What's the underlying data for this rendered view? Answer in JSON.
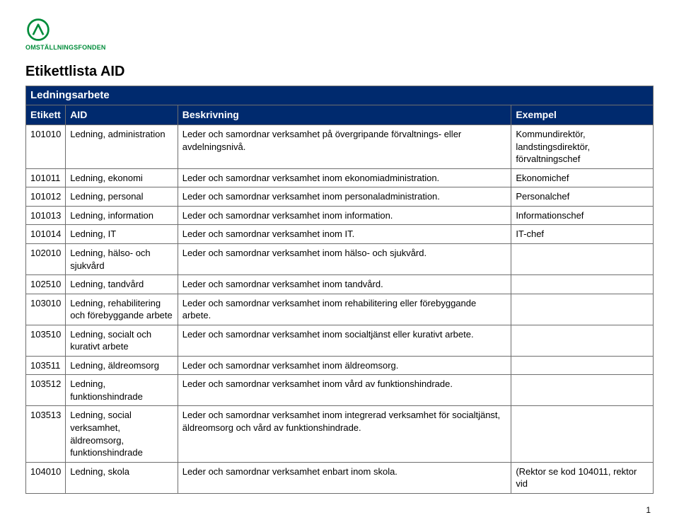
{
  "logo_text": "OMSTÄLLNINGSFONDEN",
  "page_title": "Etikettlista AID",
  "section_title": "Ledningsarbete",
  "columns": {
    "c1": "Etikett",
    "c2": "AID",
    "c3": "Beskrivning",
    "c4": "Exempel"
  },
  "rows": [
    {
      "c1": "101010",
      "c2": "Ledning, administration",
      "c3": "Leder och samordnar verksamhet på övergripande förvaltnings- eller avdelningsnivå.",
      "c4": "Kommundirektör, landstingsdirektör, förvaltningschef"
    },
    {
      "c1": "101011",
      "c2": "Ledning, ekonomi",
      "c3": "Leder och samordnar verksamhet inom ekonomiadministration.",
      "c4": "Ekonomichef"
    },
    {
      "c1": "101012",
      "c2": "Ledning, personal",
      "c3": "Leder och samordnar verksamhet inom personaladministration.",
      "c4": "Personalchef"
    },
    {
      "c1": "101013",
      "c2": "Ledning, information",
      "c3": "Leder och samordnar verksamhet inom information.",
      "c4": "Informationschef"
    },
    {
      "c1": "101014",
      "c2": "Ledning, IT",
      "c3": "Leder och samordnar verksamhet inom IT.",
      "c4": "IT-chef"
    },
    {
      "c1": "102010",
      "c2": "Ledning, hälso- och sjukvård",
      "c3": "Leder och samordnar verksamhet inom hälso- och sjukvård.",
      "c4": ""
    },
    {
      "c1": "102510",
      "c2": "Ledning, tandvård",
      "c3": "Leder och samordnar verksamhet inom tandvård.",
      "c4": ""
    },
    {
      "c1": "103010",
      "c2": "Ledning, rehabilitering och förebyggande arbete",
      "c3": "Leder och samordnar verksamhet inom rehabilitering eller förebyggande arbete.",
      "c4": ""
    },
    {
      "c1": "103510",
      "c2": "Ledning, socialt och kurativt arbete",
      "c3": "Leder och samordnar verksamhet inom socialtjänst eller kurativt arbete.",
      "c4": ""
    },
    {
      "c1": "103511",
      "c2": "Ledning, äldreomsorg",
      "c3": "Leder och samordnar verksamhet inom äldreomsorg.",
      "c4": ""
    },
    {
      "c1": "103512",
      "c2": "Ledning, funktionshindrade",
      "c3": "Leder och samordnar verksamhet inom vård av funktionshindrade.",
      "c4": ""
    },
    {
      "c1": "103513",
      "c2": "Ledning, social verksamhet, äldreomsorg, funktionshindrade",
      "c3": "Leder och samordnar verksamhet inom integrerad verksamhet för socialtjänst, äldreomsorg och vård av funktionshindrade.",
      "c4": ""
    },
    {
      "c1": "104010",
      "c2": "Ledning, skola",
      "c3": "Leder och samordnar verksamhet enbart inom skola.",
      "c4": "(Rektor se kod 104011, rektor vid"
    }
  ],
  "page_number": "1",
  "colors": {
    "header_bg": "#002a6e",
    "border": "#6e6e6e",
    "brand_green": "#008c3a"
  }
}
